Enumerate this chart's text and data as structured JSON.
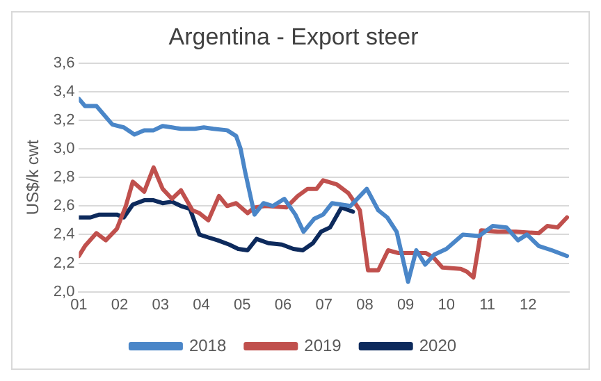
{
  "chart_data": {
    "type": "line",
    "title": "Argentina - Export steer",
    "ylabel": "US$/k cwt",
    "xlim": [
      1,
      13
    ],
    "xticks": [
      {
        "value": 1,
        "label": "01"
      },
      {
        "value": 2,
        "label": "02"
      },
      {
        "value": 3,
        "label": "03"
      },
      {
        "value": 4,
        "label": "04"
      },
      {
        "value": 5,
        "label": "05"
      },
      {
        "value": 6,
        "label": "06"
      },
      {
        "value": 7,
        "label": "07"
      },
      {
        "value": 8,
        "label": "08"
      },
      {
        "value": 9,
        "label": "09"
      },
      {
        "value": 10,
        "label": "10"
      },
      {
        "value": 11,
        "label": "11"
      },
      {
        "value": 12,
        "label": "12"
      }
    ],
    "ylim": [
      2.0,
      3.6
    ],
    "yticks": [
      {
        "value": 2.0,
        "label": "2,0"
      },
      {
        "value": 2.2,
        "label": "2,2"
      },
      {
        "value": 2.4,
        "label": "2,4"
      },
      {
        "value": 2.6,
        "label": "2,6"
      },
      {
        "value": 2.8,
        "label": "2,8"
      },
      {
        "value": 3.0,
        "label": "3,0"
      },
      {
        "value": 3.2,
        "label": "3,2"
      },
      {
        "value": 3.4,
        "label": "3,4"
      },
      {
        "value": 3.6,
        "label": "3,6"
      }
    ],
    "grid": "y",
    "legend": "bottom",
    "marker": "none",
    "line_style": "solid",
    "series": [
      {
        "name": "2018",
        "color": "#4a86c8",
        "x": [
          1.0,
          1.15,
          1.43,
          1.82,
          2.1,
          2.36,
          2.6,
          2.83,
          3.05,
          3.28,
          3.5,
          3.84,
          4.06,
          4.29,
          4.63,
          4.85,
          4.96,
          5.07,
          5.3,
          5.52,
          5.75,
          6.03,
          6.3,
          6.5,
          6.76,
          6.98,
          7.2,
          7.65,
          8.05,
          8.33,
          8.55,
          8.78,
          9.06,
          9.26,
          9.48,
          9.7,
          10.0,
          10.4,
          10.8,
          11.13,
          11.47,
          11.75,
          11.97,
          12.26,
          12.58,
          12.95
        ],
        "values": [
          3.35,
          3.3,
          3.3,
          3.17,
          3.15,
          3.1,
          3.13,
          3.13,
          3.16,
          3.15,
          3.14,
          3.14,
          3.15,
          3.14,
          3.13,
          3.09,
          3.0,
          2.84,
          2.54,
          2.62,
          2.6,
          2.65,
          2.54,
          2.42,
          2.51,
          2.54,
          2.62,
          2.6,
          2.72,
          2.57,
          2.52,
          2.42,
          2.07,
          2.29,
          2.19,
          2.26,
          2.3,
          2.4,
          2.39,
          2.46,
          2.45,
          2.36,
          2.4,
          2.32,
          2.29,
          2.25
        ]
      },
      {
        "name": "2019",
        "color": "#c0504d",
        "x": [
          1.0,
          1.15,
          1.43,
          1.66,
          1.93,
          2.15,
          2.32,
          2.6,
          2.83,
          3.05,
          3.28,
          3.5,
          3.78,
          3.95,
          4.17,
          4.43,
          4.63,
          4.85,
          5.13,
          5.3,
          5.57,
          6.08,
          6.36,
          6.6,
          6.82,
          6.98,
          7.32,
          7.6,
          7.88,
          8.08,
          8.33,
          8.57,
          8.83,
          9.17,
          9.5,
          9.68,
          9.9,
          10.35,
          10.5,
          10.66,
          10.85,
          11.25,
          11.7,
          12.26,
          12.47,
          12.72,
          12.95
        ],
        "values": [
          2.25,
          2.32,
          2.41,
          2.36,
          2.44,
          2.6,
          2.77,
          2.7,
          2.87,
          2.72,
          2.65,
          2.71,
          2.57,
          2.55,
          2.5,
          2.67,
          2.6,
          2.62,
          2.55,
          2.59,
          2.6,
          2.59,
          2.67,
          2.72,
          2.72,
          2.78,
          2.75,
          2.69,
          2.57,
          2.15,
          2.15,
          2.29,
          2.27,
          2.27,
          2.27,
          2.24,
          2.17,
          2.16,
          2.14,
          2.1,
          2.43,
          2.42,
          2.42,
          2.41,
          2.46,
          2.45,
          2.52
        ]
      },
      {
        "name": "2020",
        "color": "#0d2a5c",
        "x": [
          1.0,
          1.28,
          1.5,
          1.93,
          2.1,
          2.32,
          2.6,
          2.83,
          3.05,
          3.28,
          3.5,
          3.72,
          3.95,
          4.17,
          4.4,
          4.68,
          4.9,
          5.13,
          5.35,
          5.64,
          5.97,
          6.25,
          6.48,
          6.73,
          6.93,
          7.15,
          7.43,
          7.71
        ],
        "values": [
          2.52,
          2.52,
          2.54,
          2.54,
          2.52,
          2.61,
          2.64,
          2.64,
          2.62,
          2.63,
          2.6,
          2.58,
          2.4,
          2.38,
          2.36,
          2.33,
          2.3,
          2.29,
          2.37,
          2.34,
          2.33,
          2.3,
          2.29,
          2.34,
          2.42,
          2.45,
          2.59,
          2.56
        ]
      }
    ]
  }
}
